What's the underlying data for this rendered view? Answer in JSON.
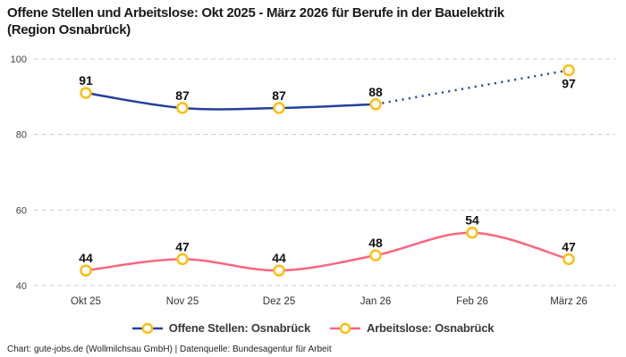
{
  "title": "Offene Stellen und Arbeitslose: Okt 2025 - März 2026 für Berufe in der Bauelektrik\n(Region Osnabrück)",
  "footer": {
    "credit": "Chart: gute-jobs.de (Wollmilchsau GmbH) | Datenquelle: Bundesagentur für Arbeit"
  },
  "colors": {
    "series_offene_stellen": "#24409e",
    "series_arbeitslose": "#fa6680",
    "marker_ring": "#fbbf16",
    "marker_fill": "#ffffff",
    "gridline": "#cccccc",
    "title_text": "#191919",
    "data_label": "#111111",
    "axis_tick": "#444444",
    "legend_text": "#3a3a3a"
  },
  "chart_data": {
    "type": "line",
    "title": "Offene Stellen und Arbeitslose: Okt 2025 - März 2026 für Berufe in der Bauelektrik (Region Osnabrück)",
    "categories": [
      "Okt 25",
      "Nov 25",
      "Dez 25",
      "Jan 26",
      "Feb 26",
      "März 26"
    ],
    "series": [
      {
        "name": "Offene Stellen: Osnabrück",
        "color": "#24409e",
        "values": [
          91,
          87,
          87,
          88,
          null,
          97
        ],
        "segments": [
          {
            "from": 0,
            "to": 3,
            "style": "solid"
          },
          {
            "from": 3,
            "to": 5,
            "style": "dotted"
          }
        ],
        "labels_below": [
          5
        ]
      },
      {
        "name": "Arbeitslose: Osnabrück",
        "color": "#fa6680",
        "values": [
          44,
          47,
          44,
          48,
          54,
          47
        ],
        "segments": [
          {
            "from": 0,
            "to": 5,
            "style": "solid"
          }
        ],
        "labels_below": []
      }
    ],
    "yticks": [
      100,
      80,
      60,
      40
    ],
    "ylim": [
      36,
      104
    ],
    "xlabel": "",
    "ylabel": "",
    "grid": "horizontal-dashed",
    "legend_position": "bottom",
    "marker": {
      "shape": "circle-ring",
      "fill": "#ffffff",
      "stroke": "#fbbf16"
    }
  }
}
